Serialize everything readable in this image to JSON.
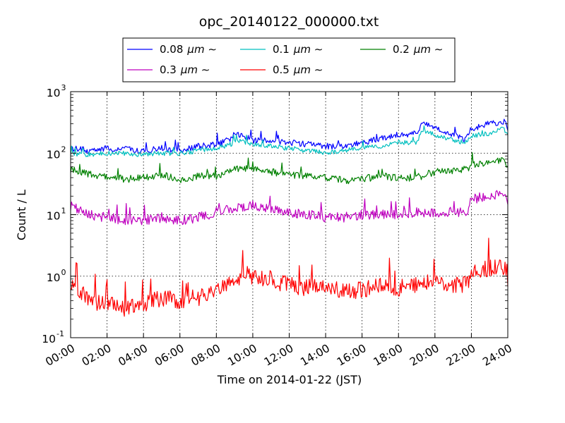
{
  "chart_data": {
    "type": "line",
    "title": "opc_20140122_000000.txt",
    "xlabel": "Time on 2014-01-22 (JST)",
    "ylabel": "Count / L",
    "yscale": "log",
    "ylim": [
      0.1,
      1000
    ],
    "xlim": [
      "00:00",
      "24:00"
    ],
    "x_ticks": [
      "00:00",
      "02:00",
      "04:00",
      "06:00",
      "08:00",
      "10:00",
      "12:00",
      "14:00",
      "16:00",
      "18:00",
      "20:00",
      "22:00",
      "24:00"
    ],
    "y_ticks": [
      {
        "value": 0.1,
        "base": "10",
        "exp": "-1"
      },
      {
        "value": 1,
        "base": "10",
        "exp": "0"
      },
      {
        "value": 10,
        "base": "10",
        "exp": "1"
      },
      {
        "value": 100,
        "base": "10",
        "exp": "2"
      },
      {
        "value": 1000,
        "base": "10",
        "exp": "3"
      }
    ],
    "grid": true,
    "legend_position": "top-center",
    "legend_suffix": "μm ∼",
    "series": [
      {
        "name": "0.08",
        "color": "#0000ff",
        "x_hours": [
          0,
          1,
          2,
          3,
          4,
          5,
          6,
          7,
          8,
          8.8,
          9,
          10,
          11,
          12,
          13,
          14,
          15,
          16,
          17,
          18,
          19,
          19.3,
          20,
          21,
          21.6,
          22,
          23,
          23.8,
          24
        ],
        "values": [
          120,
          110,
          120,
          115,
          110,
          120,
          110,
          130,
          140,
          170,
          220,
          160,
          160,
          150,
          140,
          130,
          130,
          150,
          170,
          200,
          210,
          320,
          270,
          200,
          170,
          250,
          300,
          330,
          260
        ]
      },
      {
        "name": "0.1",
        "color": "#00bfbf",
        "x_hours": [
          0,
          1,
          2,
          3,
          4,
          5,
          6,
          7,
          8,
          8.8,
          9,
          10,
          11,
          12,
          13,
          14,
          15,
          16,
          17,
          18,
          19,
          19.3,
          20,
          21,
          21.6,
          22,
          23,
          23.8,
          24
        ],
        "values": [
          100,
          95,
          100,
          100,
          95,
          100,
          100,
          110,
          120,
          140,
          160,
          140,
          130,
          120,
          110,
          100,
          110,
          120,
          130,
          150,
          150,
          230,
          200,
          160,
          150,
          190,
          210,
          250,
          190
        ]
      },
      {
        "name": "0.2",
        "color": "#008000",
        "x_hours": [
          0,
          1,
          2,
          3,
          4,
          5,
          6,
          7,
          8,
          9,
          10,
          11,
          12,
          13,
          14,
          15,
          16,
          17,
          18,
          19,
          20,
          21,
          21.8,
          22,
          23,
          23.8,
          24
        ],
        "values": [
          55,
          45,
          40,
          38,
          40,
          45,
          37,
          42,
          42,
          55,
          55,
          50,
          45,
          42,
          40,
          36,
          38,
          42,
          40,
          40,
          50,
          50,
          55,
          65,
          72,
          80,
          60
        ]
      },
      {
        "name": "0.3",
        "color": "#bf00bf",
        "x_hours": [
          0,
          1,
          2,
          3,
          4,
          5,
          6,
          7,
          8,
          9,
          10,
          11,
          12,
          13,
          14,
          15,
          16,
          17,
          18,
          19,
          20,
          21,
          21.8,
          22,
          23,
          23.8,
          24
        ],
        "values": [
          14,
          10,
          9,
          8,
          8,
          9,
          8,
          9,
          11,
          13,
          14,
          12,
          11,
          10,
          9,
          9,
          10,
          10,
          10,
          11,
          11,
          11,
          11,
          18,
          20,
          22,
          15
        ]
      },
      {
        "name": "0.5",
        "color": "#ff0000",
        "x_hours": [
          0,
          0.5,
          1,
          2,
          3,
          4,
          5,
          6,
          7,
          8,
          9,
          9.5,
          10,
          11,
          12,
          13,
          14,
          15,
          16,
          17,
          18,
          19,
          20,
          21,
          21.8,
          22,
          23,
          23.8,
          24
        ],
        "values": [
          0.85,
          0.6,
          0.4,
          0.35,
          0.3,
          0.35,
          0.45,
          0.4,
          0.45,
          0.55,
          0.8,
          1.15,
          1.0,
          0.9,
          0.7,
          0.65,
          0.7,
          0.55,
          0.6,
          0.7,
          0.65,
          0.75,
          0.8,
          0.7,
          0.75,
          1.2,
          1.35,
          1.45,
          0.8
        ]
      }
    ]
  }
}
